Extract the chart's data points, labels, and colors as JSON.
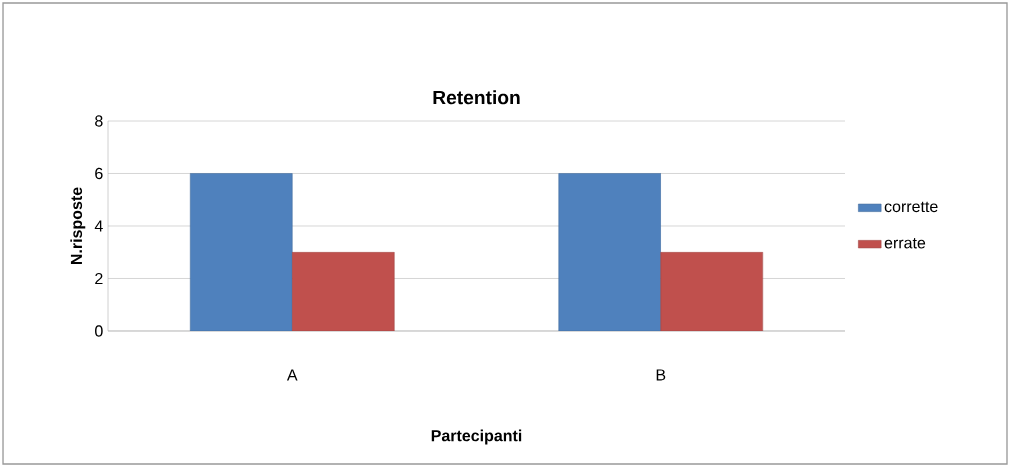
{
  "chart_data": {
    "type": "bar",
    "title": "Retention",
    "xlabel": "Partecipanti",
    "ylabel": "N.risposte",
    "categories": [
      "A",
      "B"
    ],
    "series": [
      {
        "name": "corrette",
        "color": "#4f81bd",
        "values": [
          6,
          6
        ]
      },
      {
        "name": "errate",
        "color": "#c0504d",
        "values": [
          3,
          3
        ]
      }
    ],
    "ylim": [
      0,
      8
    ],
    "yticks": [
      0,
      2,
      4,
      6,
      8
    ],
    "grid": "y",
    "legend": "right"
  }
}
